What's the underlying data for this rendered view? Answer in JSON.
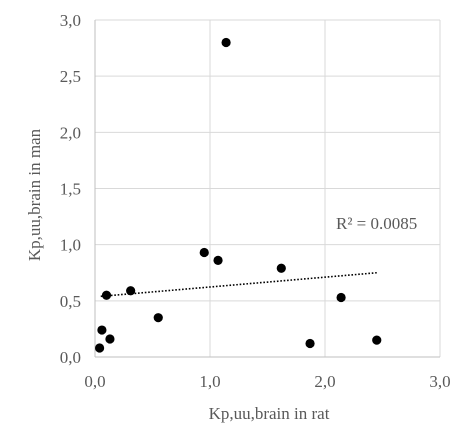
{
  "chart_data": {
    "type": "scatter",
    "title": "",
    "xlabel": "Kp,uu,brain in rat",
    "ylabel": "Kp,uu,brain in man",
    "xlim": [
      0,
      3
    ],
    "ylim": [
      0,
      3
    ],
    "x_ticks": [
      "0,0",
      "1,0",
      "2,0",
      "3,0"
    ],
    "y_ticks": [
      "0,0",
      "0,5",
      "1,0",
      "1,5",
      "2,0",
      "2,5",
      "3,0"
    ],
    "grid": true,
    "legend": "none",
    "series": [
      {
        "points": [
          {
            "x": 0.04,
            "y": 0.08
          },
          {
            "x": 0.06,
            "y": 0.24
          },
          {
            "x": 0.1,
            "y": 0.55
          },
          {
            "x": 0.13,
            "y": 0.16
          },
          {
            "x": 0.31,
            "y": 0.59
          },
          {
            "x": 0.55,
            "y": 0.35
          },
          {
            "x": 0.95,
            "y": 0.93
          },
          {
            "x": 1.07,
            "y": 0.86
          },
          {
            "x": 1.14,
            "y": 2.8
          },
          {
            "x": 1.62,
            "y": 0.79
          },
          {
            "x": 1.87,
            "y": 0.12
          },
          {
            "x": 2.14,
            "y": 0.53
          },
          {
            "x": 2.45,
            "y": 0.15
          }
        ]
      }
    ],
    "trendline": {
      "type": "linear",
      "x_start": 0.05,
      "y_start": 0.54,
      "x_end": 2.45,
      "y_end": 0.75
    },
    "annotation": "R² = 0.0085",
    "colors": {
      "points": "#000000",
      "grid": "#d9d9d9",
      "text": "#595959",
      "trendline": "#000000"
    }
  }
}
